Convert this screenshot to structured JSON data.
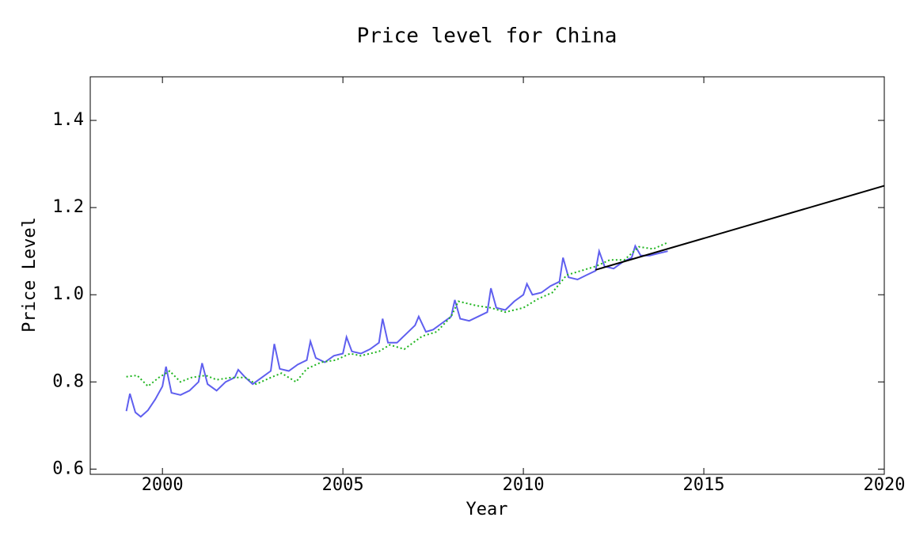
{
  "chart_data": {
    "type": "line",
    "title": "Price level for China",
    "x_label": "Year",
    "y_label": "Price Level",
    "xlim": [
      1998,
      2020
    ],
    "ylim": [
      0.588,
      1.5
    ],
    "xticks": [
      2000,
      2005,
      2010,
      2015,
      2020
    ],
    "yticks": [
      0.6,
      0.8,
      {
        "value": 1.0,
        "label": "1.0"
      },
      1.2,
      1.4
    ],
    "series": [
      {
        "color": "#5f5fef",
        "dash": "solid",
        "x": [
          1999.0,
          1999.1,
          1999.25,
          1999.4,
          1999.6,
          1999.8,
          2000.0,
          2000.1,
          2000.25,
          2000.5,
          2000.75,
          2001.0,
          2001.1,
          2001.25,
          2001.5,
          2001.75,
          2002.0,
          2002.1,
          2002.3,
          2002.5,
          2002.75,
          2003.0,
          2003.1,
          2003.25,
          2003.5,
          2003.75,
          2004.0,
          2004.1,
          2004.25,
          2004.5,
          2004.75,
          2005.0,
          2005.1,
          2005.25,
          2005.5,
          2005.75,
          2006.0,
          2006.1,
          2006.25,
          2006.5,
          2006.75,
          2007.0,
          2007.1,
          2007.3,
          2007.5,
          2007.75,
          2008.0,
          2008.1,
          2008.25,
          2008.5,
          2008.75,
          2009.0,
          2009.1,
          2009.25,
          2009.5,
          2009.75,
          2010.0,
          2010.1,
          2010.25,
          2010.5,
          2010.75,
          2011.0,
          2011.1,
          2011.25,
          2011.5,
          2011.75,
          2012.0,
          2012.1,
          2012.25,
          2012.5,
          2012.75,
          2013.0,
          2013.1,
          2013.25,
          2013.5,
          2013.75,
          2014.0
        ],
        "values": [
          0.733,
          0.773,
          0.73,
          0.72,
          0.735,
          0.76,
          0.79,
          0.835,
          0.775,
          0.77,
          0.78,
          0.8,
          0.843,
          0.795,
          0.78,
          0.8,
          0.81,
          0.828,
          0.81,
          0.795,
          0.81,
          0.825,
          0.887,
          0.83,
          0.825,
          0.84,
          0.85,
          0.893,
          0.855,
          0.845,
          0.86,
          0.865,
          0.903,
          0.87,
          0.865,
          0.875,
          0.89,
          0.945,
          0.89,
          0.89,
          0.91,
          0.93,
          0.95,
          0.915,
          0.92,
          0.935,
          0.95,
          0.988,
          0.945,
          0.94,
          0.95,
          0.96,
          1.015,
          0.97,
          0.965,
          0.985,
          1.0,
          1.025,
          1.0,
          1.005,
          1.02,
          1.03,
          1.085,
          1.04,
          1.035,
          1.045,
          1.055,
          1.1,
          1.065,
          1.06,
          1.075,
          1.085,
          1.112,
          1.09,
          1.09,
          1.095,
          1.1
        ]
      },
      {
        "color": "#1fb51f",
        "dash": "dotted",
        "x": [
          1999.0,
          1999.3,
          1999.6,
          1999.9,
          2000.2,
          2000.5,
          2000.8,
          2001.2,
          2001.5,
          2001.9,
          2002.3,
          2002.6,
          2003.0,
          2003.3,
          2003.7,
          2004.0,
          2004.4,
          2004.8,
          2005.2,
          2005.5,
          2006.0,
          2006.3,
          2006.7,
          2007.2,
          2007.6,
          2008.0,
          2008.2,
          2008.7,
          2009.1,
          2009.5,
          2010.0,
          2010.4,
          2010.8,
          2011.2,
          2011.6,
          2012.0,
          2012.4,
          2012.8,
          2013.2,
          2013.6,
          2014.0
        ],
        "values": [
          0.812,
          0.815,
          0.79,
          0.81,
          0.825,
          0.8,
          0.81,
          0.815,
          0.805,
          0.81,
          0.81,
          0.795,
          0.81,
          0.82,
          0.8,
          0.83,
          0.845,
          0.85,
          0.865,
          0.86,
          0.87,
          0.885,
          0.875,
          0.905,
          0.915,
          0.95,
          0.985,
          0.975,
          0.97,
          0.96,
          0.97,
          0.99,
          1.005,
          1.045,
          1.055,
          1.065,
          1.08,
          1.08,
          1.11,
          1.105,
          1.12
        ]
      },
      {
        "color": "#000000",
        "dash": "solid",
        "x": [
          2012.0,
          2020.0
        ],
        "values": [
          1.057,
          1.25
        ]
      }
    ]
  }
}
